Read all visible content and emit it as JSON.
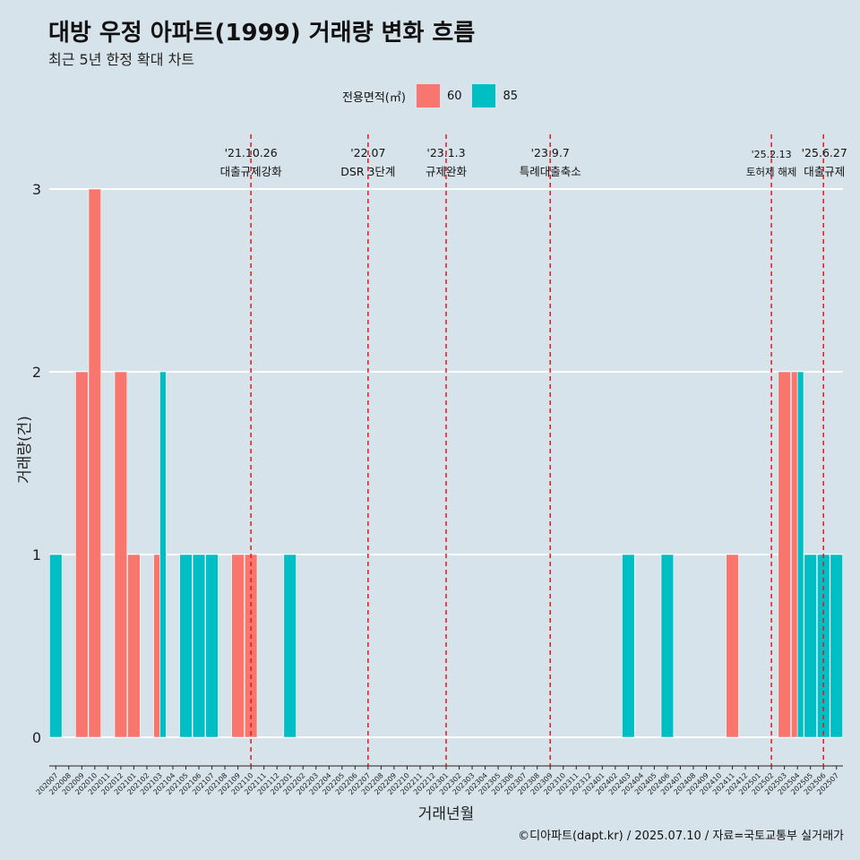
{
  "title": "대방 우정 아파트(1999) 거래량 변화 흐름",
  "subtitle": "최근 5년 한정 확대 차트",
  "caption": "©디아파트(dapt.kr) / 2025.07.10 / 자료=국토교통부 실거래가",
  "legend": {
    "title": "전용면적(㎡)",
    "items": [
      {
        "label": "60",
        "color": "#f8766d"
      },
      {
        "label": "85",
        "color": "#00bfc4"
      }
    ]
  },
  "chart_data": {
    "type": "bar",
    "xlabel": "거래년월",
    "ylabel": "거래량(건)",
    "ylim": [
      0,
      3
    ],
    "yticks": [
      0,
      1,
      2,
      3
    ],
    "grid": true,
    "legend_position": "top",
    "categories": [
      "202007",
      "202008",
      "202009",
      "202010",
      "202011",
      "202012",
      "202101",
      "202102",
      "202103",
      "202104",
      "202105",
      "202106",
      "202107",
      "202108",
      "202109",
      "202110",
      "202111",
      "202112",
      "202201",
      "202202",
      "202203",
      "202204",
      "202205",
      "202206",
      "202207",
      "202208",
      "202209",
      "202210",
      "202211",
      "202212",
      "202301",
      "202302",
      "202303",
      "202304",
      "202305",
      "202306",
      "202307",
      "202308",
      "202309",
      "202310",
      "202311",
      "202312",
      "202401",
      "202402",
      "202403",
      "202404",
      "202405",
      "202406",
      "202407",
      "202408",
      "202409",
      "202410",
      "202411",
      "202412",
      "202501",
      "202502",
      "202503",
      "202504",
      "202505",
      "202506",
      "202507"
    ],
    "series": [
      {
        "name": "60",
        "color": "#f8766d",
        "values": [
          0,
          0,
          2,
          3,
          0,
          2,
          1,
          0,
          1,
          0,
          0,
          0,
          0,
          0,
          1,
          1,
          0,
          0,
          0,
          0,
          0,
          0,
          0,
          0,
          0,
          0,
          0,
          0,
          0,
          0,
          0,
          0,
          0,
          0,
          0,
          0,
          0,
          0,
          0,
          0,
          0,
          0,
          0,
          0,
          0,
          0,
          0,
          0,
          0,
          0,
          0,
          0,
          1,
          0,
          0,
          0,
          2,
          2,
          0,
          0,
          0
        ]
      },
      {
        "name": "85",
        "color": "#00bfc4",
        "values": [
          1,
          0,
          0,
          0,
          0,
          0,
          0,
          0,
          2,
          0,
          1,
          1,
          1,
          0,
          0,
          0,
          0,
          0,
          1,
          0,
          0,
          0,
          0,
          0,
          0,
          0,
          0,
          0,
          0,
          0,
          0,
          0,
          0,
          0,
          0,
          0,
          0,
          0,
          0,
          0,
          0,
          0,
          0,
          0,
          1,
          0,
          0,
          1,
          0,
          0,
          0,
          0,
          0,
          0,
          0,
          0,
          0,
          2,
          1,
          1,
          1
        ]
      }
    ],
    "annotations": [
      {
        "date": "'21.10.26",
        "label": "대출규제강화",
        "month": "202110"
      },
      {
        "date": "'22.07",
        "label": "DSR 3단계",
        "month": "202207"
      },
      {
        "date": "'23.1.3",
        "label": "규제완화",
        "month": "202301"
      },
      {
        "date": "'23.9.7",
        "label": "특례대출축소",
        "month": "202309"
      },
      {
        "date": "'25.2.13",
        "label": "토허제 해제",
        "month": "202502"
      },
      {
        "date": "'25.6.27",
        "label": "대출규제",
        "month": "202506"
      }
    ]
  }
}
